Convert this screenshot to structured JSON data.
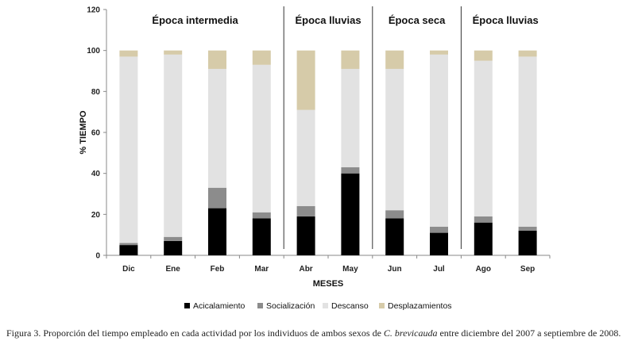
{
  "chart_data": {
    "type": "bar",
    "stacked": true,
    "categories": [
      "Dic",
      "Ene",
      "Feb",
      "Mar",
      "Abr",
      "May",
      "Jun",
      "Jul",
      "Ago",
      "Sep"
    ],
    "series": [
      {
        "name": "Acicalamiento",
        "color": "#000000",
        "values": [
          5,
          7,
          23,
          18,
          19,
          40,
          18,
          11,
          16,
          12
        ]
      },
      {
        "name": "Socialización",
        "color": "#8c8c8c",
        "values": [
          1,
          2,
          10,
          3,
          5,
          3,
          4,
          3,
          3,
          2
        ]
      },
      {
        "name": "Descanso",
        "color": "#e2e2e2",
        "values": [
          91,
          89,
          58,
          72,
          47,
          48,
          69,
          84,
          76,
          83
        ]
      },
      {
        "name": "Desplazamientos",
        "color": "#d6cba9",
        "values": [
          3,
          2,
          9,
          7,
          29,
          9,
          9,
          2,
          5,
          3
        ]
      }
    ],
    "xlabel": "MESES",
    "ylabel": "% TIEMPO",
    "ylim": [
      0,
      120
    ],
    "yticks": [
      0,
      20,
      40,
      60,
      80,
      100,
      120
    ],
    "grid": false,
    "legend_position": "bottom",
    "periods": [
      {
        "label": "Época intermedia",
        "start": 0,
        "end": 3
      },
      {
        "label": "Época lluvias",
        "start": 4,
        "end": 5
      },
      {
        "label": "Época seca",
        "start": 6,
        "end": 7
      },
      {
        "label": "Época lluvias",
        "start": 8,
        "end": 9
      }
    ]
  },
  "caption": {
    "prefix": "Figura 3. Proporción del tiempo empleado en cada actividad por los individuos de ambos sexos de ",
    "species": "C. brevicauda",
    "suffix": " entre diciembre del 2007 a septiembre de 2008."
  }
}
